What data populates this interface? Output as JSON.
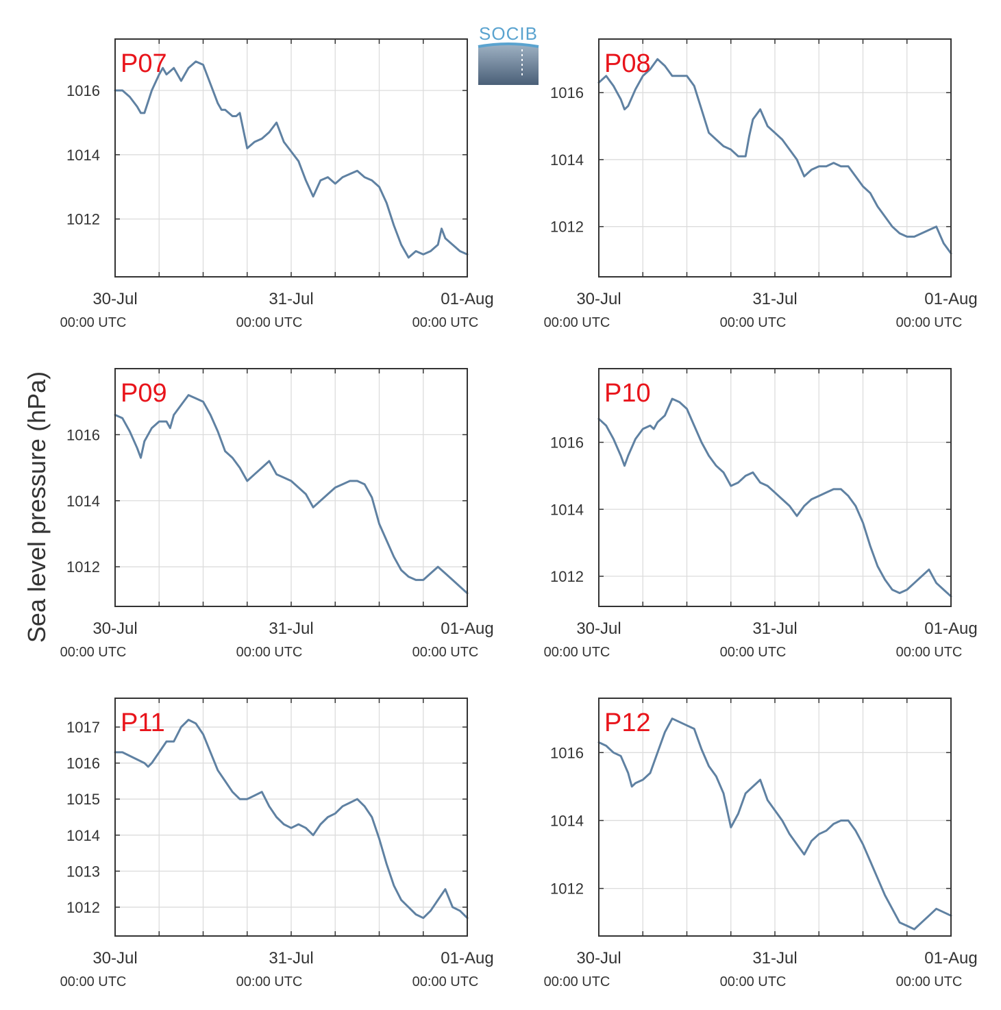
{
  "ylabel": "Sea level pressure (hPa)",
  "logo": {
    "text": "SOCIB"
  },
  "colors": {
    "line": "#5f81a2",
    "panel_label": "#e8141b",
    "grid": "#dcdcdc",
    "axis": "#333333"
  },
  "x_ticks": [
    {
      "label": "30-Jul",
      "sub": "00:00 UTC",
      "t": 0
    },
    {
      "label": "31-Jul",
      "sub": "00:00 UTC",
      "t": 24
    },
    {
      "label": "01-Aug",
      "sub": "00:00 UTC",
      "t": 48
    }
  ],
  "chart_data": [
    {
      "type": "line",
      "name": "P07",
      "xlim": [
        0,
        48
      ],
      "ylim": [
        1010.2,
        1017.6
      ],
      "yticks": [
        1012,
        1014,
        1016
      ],
      "x": [
        0,
        1,
        2,
        3,
        3.5,
        4,
        5,
        6,
        6.5,
        7,
        8,
        9,
        10,
        11,
        12,
        13,
        14,
        14.5,
        15,
        16,
        16.5,
        17,
        18,
        19,
        20,
        21,
        22,
        23,
        24,
        25,
        26,
        27,
        28,
        29,
        30,
        31,
        32,
        33,
        34,
        35,
        36,
        37,
        38,
        39,
        40,
        41,
        42,
        43,
        44,
        44.5,
        45,
        46,
        47,
        48
      ],
      "y": [
        1016.0,
        1016.0,
        1015.8,
        1015.5,
        1015.3,
        1015.3,
        1016.0,
        1016.5,
        1016.7,
        1016.5,
        1016.7,
        1016.3,
        1016.7,
        1016.9,
        1016.8,
        1016.2,
        1015.6,
        1015.4,
        1015.4,
        1015.2,
        1015.2,
        1015.3,
        1014.2,
        1014.4,
        1014.5,
        1014.7,
        1015.0,
        1014.4,
        1014.1,
        1013.8,
        1013.2,
        1012.7,
        1013.2,
        1013.3,
        1013.1,
        1013.3,
        1013.4,
        1013.5,
        1013.3,
        1013.2,
        1013.0,
        1012.5,
        1011.8,
        1011.2,
        1010.8,
        1011.0,
        1010.9,
        1011.0,
        1011.2,
        1011.7,
        1011.4,
        1011.2,
        1011.0,
        1010.9
      ]
    },
    {
      "type": "line",
      "name": "P08",
      "xlim": [
        0,
        48
      ],
      "ylim": [
        1010.5,
        1017.6
      ],
      "yticks": [
        1012,
        1014,
        1016
      ],
      "x": [
        0,
        1,
        2,
        3,
        3.5,
        4,
        5,
        6,
        7,
        8,
        9,
        10,
        11,
        12,
        13,
        14,
        15,
        16,
        17,
        18,
        19,
        20,
        20.5,
        21,
        22,
        23,
        24,
        25,
        26,
        27,
        28,
        29,
        30,
        31,
        32,
        33,
        34,
        35,
        36,
        37,
        38,
        39,
        40,
        41,
        42,
        43,
        44,
        45,
        46,
        47,
        48
      ],
      "y": [
        1016.3,
        1016.5,
        1016.2,
        1015.8,
        1015.5,
        1015.6,
        1016.1,
        1016.5,
        1016.7,
        1017.0,
        1016.8,
        1016.5,
        1016.5,
        1016.5,
        1016.2,
        1015.5,
        1014.8,
        1014.6,
        1014.4,
        1014.3,
        1014.1,
        1014.1,
        1014.7,
        1015.2,
        1015.5,
        1015.0,
        1014.8,
        1014.6,
        1014.3,
        1014.0,
        1013.5,
        1013.7,
        1013.8,
        1013.8,
        1013.9,
        1013.8,
        1013.8,
        1013.5,
        1013.2,
        1013.0,
        1012.6,
        1012.3,
        1012.0,
        1011.8,
        1011.7,
        1011.7,
        1011.8,
        1011.9,
        1012.0,
        1011.5,
        1011.2
      ]
    },
    {
      "type": "line",
      "name": "P09",
      "xlim": [
        0,
        48
      ],
      "ylim": [
        1010.8,
        1018.0
      ],
      "yticks": [
        1012,
        1014,
        1016
      ],
      "x": [
        0,
        1,
        2,
        3,
        3.5,
        4,
        5,
        6,
        7,
        7.5,
        8,
        9,
        10,
        11,
        12,
        13,
        14,
        15,
        16,
        17,
        18,
        19,
        20,
        21,
        22,
        23,
        24,
        25,
        26,
        27,
        28,
        29,
        30,
        31,
        32,
        33,
        34,
        35,
        36,
        37,
        38,
        39,
        40,
        41,
        42,
        43,
        44,
        45,
        46,
        47,
        48
      ],
      "y": [
        1016.6,
        1016.5,
        1016.1,
        1015.6,
        1015.3,
        1015.8,
        1016.2,
        1016.4,
        1016.4,
        1016.2,
        1016.6,
        1016.9,
        1017.2,
        1017.1,
        1017.0,
        1016.6,
        1016.1,
        1015.5,
        1015.3,
        1015.0,
        1014.6,
        1014.8,
        1015.0,
        1015.2,
        1014.8,
        1014.7,
        1014.6,
        1014.4,
        1014.2,
        1013.8,
        1014.0,
        1014.2,
        1014.4,
        1014.5,
        1014.6,
        1014.6,
        1014.5,
        1014.1,
        1013.3,
        1012.8,
        1012.3,
        1011.9,
        1011.7,
        1011.6,
        1011.6,
        1011.8,
        1012.0,
        1011.8,
        1011.6,
        1011.4,
        1011.2
      ]
    },
    {
      "type": "line",
      "name": "P10",
      "xlim": [
        0,
        48
      ],
      "ylim": [
        1011.1,
        1018.2
      ],
      "yticks": [
        1012,
        1014,
        1016
      ],
      "x": [
        0,
        1,
        2,
        3,
        3.5,
        4,
        5,
        6,
        7,
        7.5,
        8,
        9,
        10,
        11,
        12,
        13,
        14,
        15,
        16,
        17,
        18,
        19,
        20,
        21,
        22,
        23,
        24,
        25,
        26,
        27,
        28,
        29,
        30,
        31,
        32,
        33,
        34,
        35,
        36,
        37,
        38,
        39,
        40,
        41,
        42,
        43,
        44,
        45,
        46,
        47,
        48
      ],
      "y": [
        1016.7,
        1016.5,
        1016.1,
        1015.6,
        1015.3,
        1015.6,
        1016.1,
        1016.4,
        1016.5,
        1016.4,
        1016.6,
        1016.8,
        1017.3,
        1017.2,
        1017.0,
        1016.5,
        1016.0,
        1015.6,
        1015.3,
        1015.1,
        1014.7,
        1014.8,
        1015.0,
        1015.1,
        1014.8,
        1014.7,
        1014.5,
        1014.3,
        1014.1,
        1013.8,
        1014.1,
        1014.3,
        1014.4,
        1014.5,
        1014.6,
        1014.6,
        1014.4,
        1014.1,
        1013.6,
        1012.9,
        1012.3,
        1011.9,
        1011.6,
        1011.5,
        1011.6,
        1011.8,
        1012.0,
        1012.2,
        1011.8,
        1011.6,
        1011.4
      ]
    },
    {
      "type": "line",
      "name": "P11",
      "xlim": [
        0,
        48
      ],
      "ylim": [
        1011.2,
        1017.8
      ],
      "yticks": [
        1012,
        1013,
        1014,
        1015,
        1016,
        1017
      ],
      "x": [
        0,
        1,
        2,
        3,
        4,
        4.5,
        5,
        6,
        7,
        8,
        9,
        10,
        11,
        12,
        13,
        14,
        15,
        16,
        17,
        18,
        19,
        20,
        21,
        22,
        23,
        24,
        25,
        26,
        27,
        28,
        29,
        30,
        31,
        32,
        33,
        34,
        35,
        36,
        37,
        38,
        39,
        40,
        41,
        42,
        43,
        44,
        45,
        46,
        47,
        48
      ],
      "y": [
        1016.3,
        1016.3,
        1016.2,
        1016.1,
        1016.0,
        1015.9,
        1016.0,
        1016.3,
        1016.6,
        1016.6,
        1017.0,
        1017.2,
        1017.1,
        1016.8,
        1016.3,
        1015.8,
        1015.5,
        1015.2,
        1015.0,
        1015.0,
        1015.1,
        1015.2,
        1014.8,
        1014.5,
        1014.3,
        1014.2,
        1014.3,
        1014.2,
        1014.0,
        1014.3,
        1014.5,
        1014.6,
        1014.8,
        1014.9,
        1015.0,
        1014.8,
        1014.5,
        1013.9,
        1013.2,
        1012.6,
        1012.2,
        1012.0,
        1011.8,
        1011.7,
        1011.9,
        1012.2,
        1012.5,
        1012.0,
        1011.9,
        1011.7
      ]
    },
    {
      "type": "line",
      "name": "P12",
      "xlim": [
        0,
        48
      ],
      "ylim": [
        1010.6,
        1017.6
      ],
      "yticks": [
        1012,
        1014,
        1016
      ],
      "x": [
        0,
        1,
        2,
        3,
        4,
        4.5,
        5,
        6,
        7,
        8,
        9,
        10,
        11,
        12,
        13,
        14,
        15,
        16,
        17,
        18,
        19,
        20,
        21,
        22,
        23,
        24,
        25,
        26,
        27,
        28,
        29,
        30,
        31,
        32,
        33,
        34,
        35,
        36,
        37,
        38,
        39,
        40,
        41,
        42,
        43,
        44,
        45,
        46,
        47,
        48
      ],
      "y": [
        1016.3,
        1016.2,
        1016.0,
        1015.9,
        1015.4,
        1015.0,
        1015.1,
        1015.2,
        1015.4,
        1016.0,
        1016.6,
        1017.0,
        1016.9,
        1016.8,
        1016.7,
        1016.1,
        1015.6,
        1015.3,
        1014.8,
        1013.8,
        1014.2,
        1014.8,
        1015.0,
        1015.2,
        1014.6,
        1014.3,
        1014.0,
        1013.6,
        1013.3,
        1013.0,
        1013.4,
        1013.6,
        1013.7,
        1013.9,
        1014.0,
        1014.0,
        1013.7,
        1013.3,
        1012.8,
        1012.3,
        1011.8,
        1011.4,
        1011.0,
        1010.9,
        1010.8,
        1011.0,
        1011.2,
        1011.4,
        1011.3,
        1011.2
      ]
    }
  ]
}
